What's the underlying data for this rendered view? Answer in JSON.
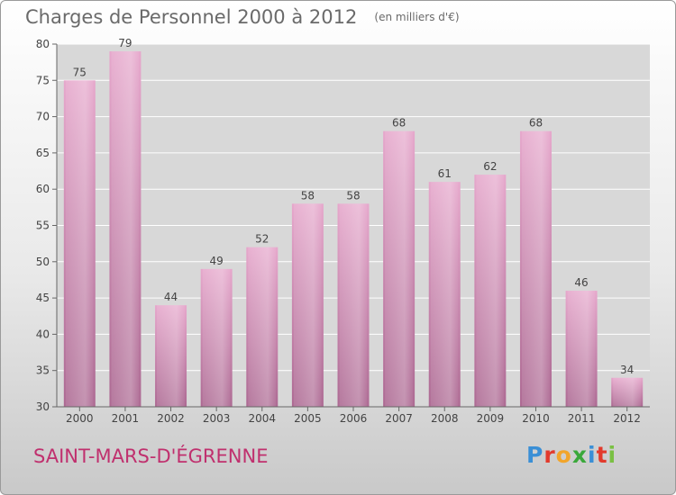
{
  "title": "Charges de Personnel 2000 à 2012",
  "unit_label": "(en milliers d'€)",
  "location": "SAINT-MARS-D'ÉGRENNE",
  "logo": {
    "text": "Proxiti",
    "letter_colors": [
      "#3a8fd6",
      "#e23a2c",
      "#f2a52a",
      "#3aa83a",
      "#3a8fd6",
      "#e23a2c",
      "#7ac043"
    ]
  },
  "colors": {
    "bar_top": "#e6a8cc",
    "bar_bottom": "#ad6a93",
    "grid": "#ffffff",
    "axis_text": "#444444"
  },
  "chart_data": {
    "type": "bar",
    "categories": [
      "2000",
      "2001",
      "2002",
      "2003",
      "2004",
      "2005",
      "2006",
      "2007",
      "2008",
      "2009",
      "2010",
      "2011",
      "2012"
    ],
    "values": [
      75,
      79,
      44,
      49,
      52,
      58,
      58,
      68,
      61,
      62,
      68,
      46,
      34
    ],
    "ylim": [
      30,
      80
    ],
    "yticks": [
      30,
      35,
      40,
      45,
      50,
      55,
      60,
      65,
      70,
      75,
      80
    ],
    "title": "Charges de Personnel 2000 à 2012",
    "xlabel": "",
    "ylabel": "",
    "grid": true
  }
}
